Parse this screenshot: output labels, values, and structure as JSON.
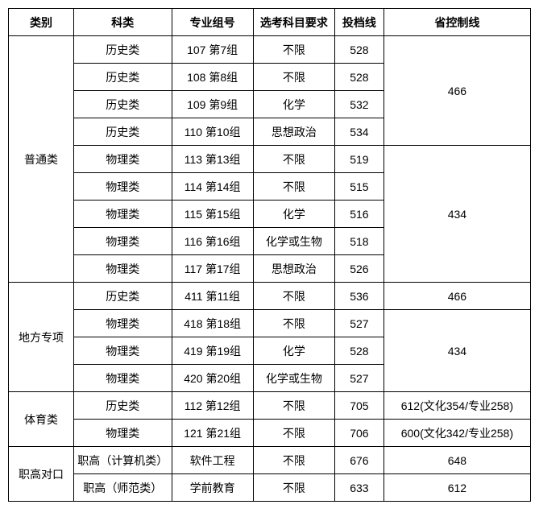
{
  "headers": {
    "category": "类别",
    "subject": "科类",
    "group": "专业组号",
    "requirement": "选考科目要求",
    "score": "投档线",
    "province": "省控制线"
  },
  "categories": [
    {
      "name": "普通类",
      "rowspan": 9,
      "rows": [
        {
          "subject": "历史类",
          "group": "107  第7组",
          "req": "不限",
          "score": "528",
          "prov": "466",
          "provRowspan": 4
        },
        {
          "subject": "历史类",
          "group": "108  第8组",
          "req": "不限",
          "score": "528"
        },
        {
          "subject": "历史类",
          "group": "109  第9组",
          "req": "化学",
          "score": "532"
        },
        {
          "subject": "历史类",
          "group": "110  第10组",
          "req": "思想政治",
          "score": "534"
        },
        {
          "subject": "物理类",
          "group": "113  第13组",
          "req": "不限",
          "score": "519",
          "prov": "434",
          "provRowspan": 5
        },
        {
          "subject": "物理类",
          "group": "114  第14组",
          "req": "不限",
          "score": "515"
        },
        {
          "subject": "物理类",
          "group": "115  第15组",
          "req": "化学",
          "score": "516"
        },
        {
          "subject": "物理类",
          "group": "116  第16组",
          "req": "化学或生物",
          "score": "518"
        },
        {
          "subject": "物理类",
          "group": "117  第17组",
          "req": "思想政治",
          "score": "526"
        }
      ]
    },
    {
      "name": "地方专项",
      "rowspan": 4,
      "rows": [
        {
          "subject": "历史类",
          "group": "411  第11组",
          "req": "不限",
          "score": "536",
          "prov": "466",
          "provRowspan": 1
        },
        {
          "subject": "物理类",
          "group": "418  第18组",
          "req": "不限",
          "score": "527",
          "prov": "434",
          "provRowspan": 3
        },
        {
          "subject": "物理类",
          "group": "419  第19组",
          "req": "化学",
          "score": "528"
        },
        {
          "subject": "物理类",
          "group": "420  第20组",
          "req": "化学或生物",
          "score": "527"
        }
      ]
    },
    {
      "name": "体育类",
      "rowspan": 2,
      "rows": [
        {
          "subject": "历史类",
          "group": "112  第12组",
          "req": "不限",
          "score": "705",
          "prov": "612(文化354/专业258)",
          "provRowspan": 1
        },
        {
          "subject": "物理类",
          "group": "121  第21组",
          "req": "不限",
          "score": "706",
          "prov": "600(文化342/专业258)",
          "provRowspan": 1
        }
      ]
    },
    {
      "name": "职高对口",
      "rowspan": 2,
      "rows": [
        {
          "subject": "职高（计算机类）",
          "group": "软件工程",
          "req": "不限",
          "score": "676",
          "prov": "648",
          "provRowspan": 1
        },
        {
          "subject": "职高（师范类）",
          "group": "学前教育",
          "req": "不限",
          "score": "633",
          "prov": "612",
          "provRowspan": 1
        }
      ]
    }
  ]
}
